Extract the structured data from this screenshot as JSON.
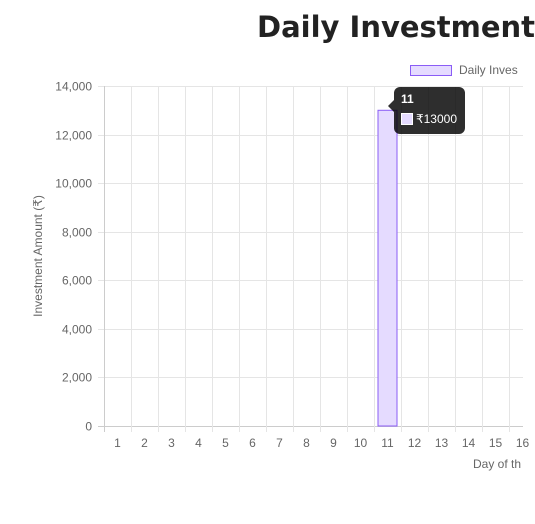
{
  "chart_data": {
    "type": "bar",
    "title": "Daily Investment",
    "ylabel": "Investment Amount (₹)",
    "xlabel": "Day of th",
    "ylim": [
      0,
      14000
    ],
    "yticks": [
      "0",
      "2,000",
      "4,000",
      "6,000",
      "8,000",
      "10,000",
      "12,000",
      "14,000"
    ],
    "ytick_values": [
      0,
      2000,
      4000,
      6000,
      8000,
      10000,
      12000,
      14000
    ],
    "categories": [
      "1",
      "2",
      "3",
      "4",
      "5",
      "6",
      "7",
      "8",
      "9",
      "10",
      "11",
      "12",
      "13",
      "14",
      "15",
      "16"
    ],
    "visible_category_labels": [
      "1",
      "2",
      "3",
      "4",
      "5",
      "6",
      "7",
      "8",
      "9",
      "10",
      "11",
      "12",
      "13",
      "14",
      "15",
      "16"
    ],
    "series": [
      {
        "name": "Daily Inves",
        "values": [
          0,
          0,
          0,
          0,
          0,
          0,
          0,
          0,
          0,
          0,
          13000,
          0,
          0,
          0,
          0,
          0
        ]
      }
    ],
    "grid": true,
    "legend_position": "top-right",
    "tooltip": {
      "title": "11",
      "value_label": "₹13000"
    }
  },
  "colors": {
    "bar_fill": "#e5dbff",
    "bar_border": "#8a5cf6",
    "grid": "#e5e5e5",
    "axis": "#cccccc",
    "text": "#666666",
    "title": "#222222"
  }
}
